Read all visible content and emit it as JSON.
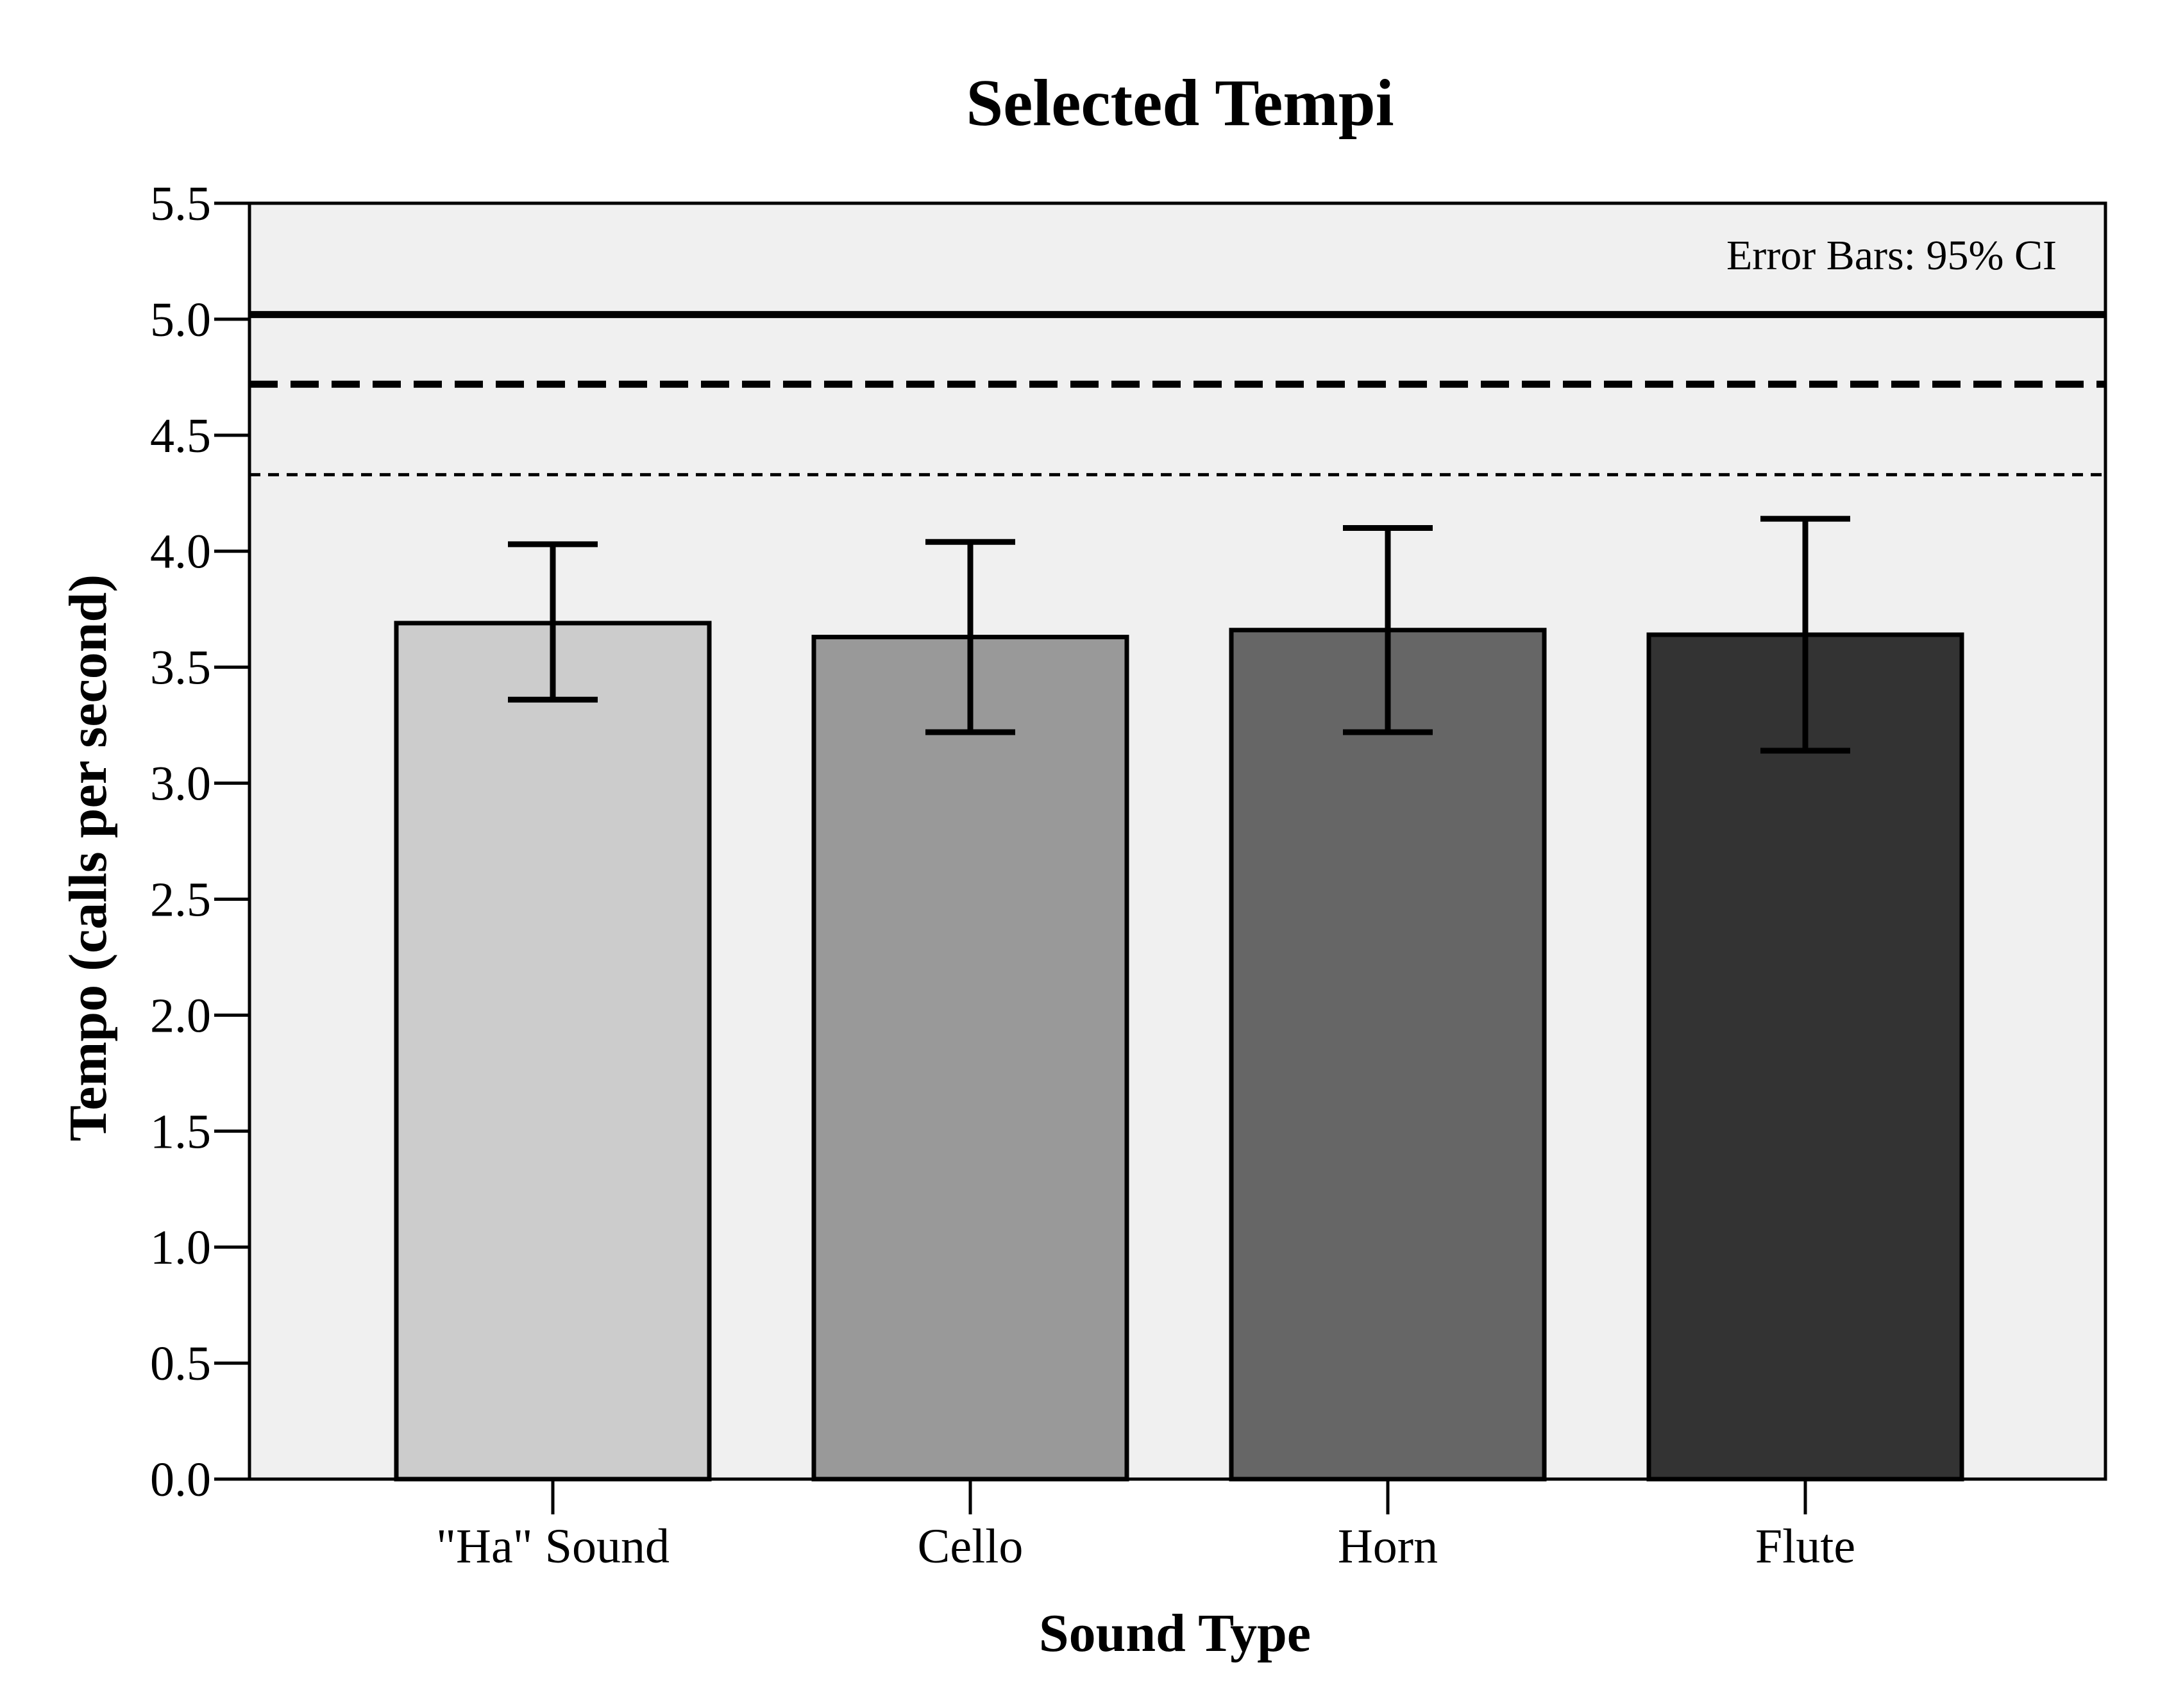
{
  "chart_data": {
    "type": "bar",
    "title": "Selected Tempi",
    "xlabel": "Sound Type",
    "ylabel": "Tempo (calls per second)",
    "categories": [
      "\"Ha\" Sound",
      "Cello",
      "Horn",
      "Flute"
    ],
    "values": [
      3.69,
      3.63,
      3.66,
      3.64
    ],
    "error_bars": {
      "lower": [
        3.36,
        3.22,
        3.22,
        3.14
      ],
      "upper": [
        4.03,
        4.04,
        4.1,
        4.14
      ]
    },
    "bar_colors": [
      "#cccccc",
      "#999999",
      "#666666",
      "#333333"
    ],
    "ylim": [
      0.0,
      5.5
    ],
    "yticks": [
      0.0,
      0.5,
      1.0,
      1.5,
      2.0,
      2.5,
      3.0,
      3.5,
      4.0,
      4.5,
      5.0,
      5.5
    ],
    "ytick_labels": [
      "0.0",
      "0.5",
      "1.0",
      "1.5",
      "2.0",
      "2.5",
      "3.0",
      "3.5",
      "4.0",
      "4.5",
      "5.0",
      "5.5"
    ],
    "reference_lines": [
      {
        "value": 5.02,
        "style": "solid"
      },
      {
        "value": 4.72,
        "style": "dashed"
      },
      {
        "value": 4.33,
        "style": "dotted"
      }
    ],
    "annotation": "Error Bars: 95% CI",
    "annotation_position": "top-right",
    "plot_background": "#f0f0f0",
    "grid": false,
    "legend": false
  }
}
